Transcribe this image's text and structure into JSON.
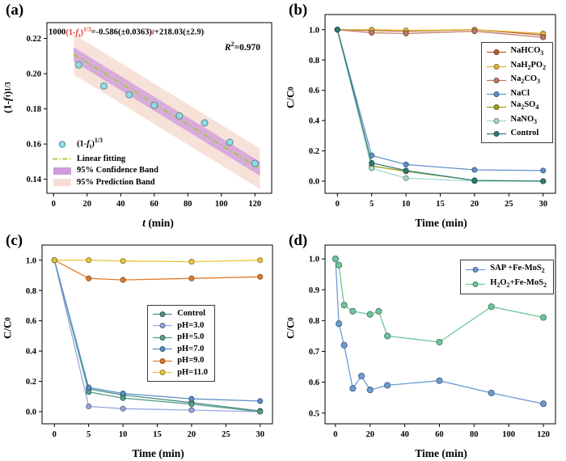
{
  "panels": {
    "a": {
      "label": "(a)"
    },
    "b": {
      "label": "(b)"
    },
    "c": {
      "label": "(c)"
    },
    "d": {
      "label": "(d)"
    }
  },
  "chart_data": [
    {
      "id": "a",
      "type": "scatter",
      "equation": {
        "p1": "1000",
        "p2a": "(1-",
        "p2f": "f",
        "p2sub": "t",
        "p2b": ")",
        "p2sup": "1/3",
        "p3": "=-0.586(±0.0363)",
        "p4": "t",
        "p5": "+218.03(±2.9)",
        "r2R": "R",
        "r2sup": "2",
        "r2rest": "=0.970"
      },
      "xlabel_italic": "t",
      "xlabel_rest": " (min)",
      "ylabel": {
        "a": "(1-",
        "f": "f",
        "sub": "t",
        "b": ")",
        "sup": "1/3"
      },
      "xlim": [
        -4,
        130
      ],
      "ylim": [
        0.132,
        0.229
      ],
      "xticks": [
        0,
        20,
        40,
        60,
        80,
        100,
        120
      ],
      "yticks": [
        0.14,
        0.16,
        0.18,
        0.2,
        0.22
      ],
      "ydec": 2,
      "x": [
        15,
        30,
        45,
        60,
        75,
        90,
        105,
        120
      ],
      "series": [
        {
          "key": "one-minus-ft-cuberoot",
          "line": false,
          "marker_r": 4,
          "color": "#8fdbe8",
          "values": [
            0.205,
            0.193,
            0.188,
            0.182,
            0.176,
            0.172,
            0.161,
            0.149
          ]
        }
      ],
      "fit": {
        "slope": -0.000586,
        "intercept": 0.21803,
        "xrange": [
          12,
          123
        ],
        "color": "#9acd32",
        "confidence_halfwidth": 0.004,
        "confidence_color": "#cf9ddb",
        "confidence_color_opacity": 0.8,
        "prediction_halfwidth": 0.0115,
        "prediction_color": "#f6ddd3",
        "prediction_color_opacity": 0.85
      },
      "legend": {
        "items": [
          {
            "swatch": "marker",
            "color": "#8fdbe8",
            "label": [
              {
                "t": "(1-"
              },
              {
                "t": "f",
                "s": "i"
              },
              {
                "t": "t",
                "s": "sub"
              },
              {
                "t": ")"
              },
              {
                "t": "1/3",
                "s": "sup"
              }
            ]
          },
          {
            "swatch": "dashdot",
            "color": "#9acd32",
            "label": [
              {
                "t": "Linear fitting"
              }
            ]
          },
          {
            "swatch": "box",
            "color": "#cf9ddb",
            "label": [
              {
                "t": "95% Confidence Band"
              }
            ]
          },
          {
            "swatch": "box",
            "color": "#f6ddd3",
            "label": [
              {
                "t": "95% Prediction Band"
              }
            ]
          }
        ]
      }
    },
    {
      "id": "b",
      "type": "line",
      "xlabel": "Time (min)",
      "ylabel": {
        "main": "C/C",
        "sub": "0"
      },
      "xlim": [
        -1.8,
        31.8
      ],
      "ylim": [
        -0.08,
        1.1
      ],
      "xticks": [
        0,
        5,
        10,
        15,
        20,
        25,
        30
      ],
      "yticks": [
        0.0,
        0.2,
        0.4,
        0.6,
        0.8,
        1.0
      ],
      "ydec": 1,
      "x": [
        0,
        5,
        10,
        20,
        30
      ],
      "series": [
        {
          "key": "NaHCO3",
          "name_parts": [
            {
              "t": "NaHCO"
            },
            {
              "t": "3",
              "s": "sub"
            }
          ],
          "color": "#b5622f",
          "values": [
            1.0,
            0.995,
            0.99,
            1.0,
            0.965
          ]
        },
        {
          "key": "NaH2PO2",
          "name_parts": [
            {
              "t": "NaH"
            },
            {
              "t": "2",
              "s": "sub"
            },
            {
              "t": "PO"
            },
            {
              "t": "2",
              "s": "sub"
            }
          ],
          "color": "#e3b33a",
          "values": [
            1.0,
            1.0,
            0.995,
            1.0,
            0.975
          ]
        },
        {
          "key": "Na2CO3",
          "name_parts": [
            {
              "t": "Na"
            },
            {
              "t": "2",
              "s": "sub"
            },
            {
              "t": "CO"
            },
            {
              "t": "3",
              "s": "sub"
            }
          ],
          "color": "#c07a68",
          "values": [
            1.0,
            0.98,
            0.975,
            0.99,
            0.95
          ]
        },
        {
          "key": "NaCl",
          "name_parts": [
            {
              "t": "NaCl"
            }
          ],
          "color": "#6092ca",
          "values": [
            1.0,
            0.17,
            0.11,
            0.075,
            0.07
          ]
        },
        {
          "key": "Na2SO4",
          "name_parts": [
            {
              "t": "Na"
            },
            {
              "t": "2",
              "s": "sub"
            },
            {
              "t": "SO"
            },
            {
              "t": "4",
              "s": "sub"
            }
          ],
          "color": "#9ea11e",
          "values": [
            1.0,
            0.1,
            0.065,
            0.005,
            0.0
          ]
        },
        {
          "key": "NaNO3",
          "name_parts": [
            {
              "t": "NaNO"
            },
            {
              "t": "3",
              "s": "sub"
            }
          ],
          "color": "#a9dcd2",
          "values": [
            1.0,
            0.085,
            0.02,
            0.0,
            0.0
          ]
        },
        {
          "key": "Control",
          "name_parts": [
            {
              "t": "Control"
            }
          ],
          "color": "#2e7d77",
          "values": [
            1.0,
            0.12,
            0.07,
            0.005,
            0.0
          ]
        }
      ],
      "legend": {
        "from_series": true
      }
    },
    {
      "id": "c",
      "type": "line",
      "xlabel": "Time (min)",
      "ylabel": {
        "main": "C/C",
        "sub": "0"
      },
      "xlim": [
        -1.8,
        31.8
      ],
      "ylim": [
        -0.08,
        1.1
      ],
      "xticks": [
        0,
        5,
        10,
        15,
        20,
        25,
        30
      ],
      "yticks": [
        0.0,
        0.2,
        0.4,
        0.6,
        0.8,
        1.0
      ],
      "ydec": 1,
      "x": [
        0,
        5,
        10,
        20,
        30
      ],
      "series": [
        {
          "key": "Control",
          "name_parts": [
            {
              "t": "Control"
            }
          ],
          "color": "#4f8f88",
          "values": [
            1.0,
            0.15,
            0.11,
            0.06,
            0.005
          ]
        },
        {
          "key": "pH-3.0",
          "name_parts": [
            {
              "t": "pH=3.0"
            }
          ],
          "color": "#99a5de",
          "values": [
            1.0,
            0.035,
            0.02,
            0.01,
            0.0
          ]
        },
        {
          "key": "pH-5.0",
          "name_parts": [
            {
              "t": "pH=5.0"
            }
          ],
          "color": "#58a18e",
          "values": [
            1.0,
            0.13,
            0.09,
            0.05,
            0.0
          ]
        },
        {
          "key": "pH-7.0",
          "name_parts": [
            {
              "t": "pH=7.0"
            }
          ],
          "color": "#5b8fc8",
          "values": [
            1.0,
            0.16,
            0.12,
            0.085,
            0.07
          ]
        },
        {
          "key": "pH-9.0",
          "name_parts": [
            {
              "t": "pH=9.0"
            }
          ],
          "color": "#e07c2a",
          "values": [
            1.0,
            0.88,
            0.87,
            0.88,
            0.89
          ]
        },
        {
          "key": "pH-11.0",
          "name_parts": [
            {
              "t": "pH=11.0"
            }
          ],
          "color": "#e8c73c",
          "values": [
            1.0,
            1.0,
            0.995,
            0.99,
            1.0
          ]
        }
      ],
      "legend": {
        "from_series": true
      }
    },
    {
      "id": "d",
      "type": "line",
      "xlabel": "Time (min)",
      "ylabel": {
        "main": "C/C",
        "sub": "0"
      },
      "xlim": [
        -6,
        127
      ],
      "ylim": [
        0.465,
        1.045
      ],
      "xticks": [
        0,
        20,
        40,
        60,
        80,
        100,
        120
      ],
      "yticks": [
        0.5,
        0.6,
        0.7,
        0.8,
        0.9,
        1.0
      ],
      "ydec": 1,
      "series": [
        {
          "key": "SAP-Fe-MoS2",
          "name_parts": [
            {
              "t": "SAP +Fe-MoS"
            },
            {
              "t": "2",
              "s": "sub"
            }
          ],
          "color": "#6b9cd4",
          "marker_r": 3.6,
          "x": [
            0,
            2,
            5,
            10,
            15,
            20,
            30,
            60,
            90,
            120
          ],
          "values": [
            1.0,
            0.79,
            0.72,
            0.58,
            0.62,
            0.575,
            0.59,
            0.605,
            0.565,
            0.53
          ]
        },
        {
          "key": "H2O2-Fe-MoS2",
          "name_parts": [
            {
              "t": "H"
            },
            {
              "t": "2",
              "s": "sub"
            },
            {
              "t": "O"
            },
            {
              "t": "2",
              "s": "sub"
            },
            {
              "t": "+Fe-MoS"
            },
            {
              "t": "2",
              "s": "sub"
            }
          ],
          "color": "#6ec79c",
          "marker_r": 3.6,
          "x": [
            0,
            2,
            5,
            10,
            20,
            25,
            30,
            60,
            90,
            120
          ],
          "values": [
            1.0,
            0.98,
            0.85,
            0.83,
            0.82,
            0.83,
            0.75,
            0.73,
            0.845,
            0.81
          ]
        }
      ],
      "legend": {
        "from_series": true
      }
    }
  ]
}
